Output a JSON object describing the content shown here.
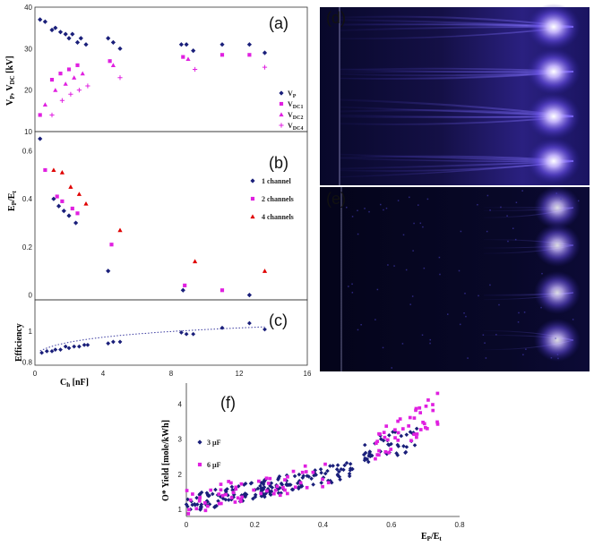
{
  "chart_data": [
    {
      "panel": "(a)",
      "type": "scatter",
      "ylabel": "V_P, V_DC [kV]",
      "xlim": [
        0,
        16
      ],
      "ylim": [
        10,
        40
      ],
      "yticks": [
        "10",
        "20",
        "30",
        "40"
      ],
      "legend_position": "right",
      "series": [
        {
          "name": "V_P",
          "marker": "diamond",
          "color": "#1a1f7a",
          "x": [
            0.3,
            0.6,
            1.0,
            1.2,
            1.5,
            1.8,
            2.0,
            2.2,
            2.5,
            2.7,
            3.0,
            4.3,
            4.6,
            5.0,
            8.6,
            8.9,
            9.3,
            11.0,
            12.6,
            13.5
          ],
          "y": [
            37,
            36.5,
            34.5,
            35,
            34,
            33.5,
            32.5,
            33.5,
            31.5,
            32.5,
            31,
            32.5,
            31.5,
            30,
            31,
            31,
            29.5,
            31,
            31,
            29
          ]
        },
        {
          "name": "V_DC1",
          "marker": "square",
          "color": "#e020e0",
          "x": [
            0.3,
            1.0,
            1.5,
            2.0,
            2.5,
            4.4,
            8.7,
            11.0,
            12.6
          ],
          "y": [
            14,
            22.5,
            24,
            25,
            26,
            27,
            28,
            28.5,
            28.5
          ]
        },
        {
          "name": "V_DC2",
          "marker": "triangle",
          "color": "#e020e0",
          "x": [
            0.6,
            1.2,
            1.8,
            2.3,
            2.8,
            4.6,
            9.0
          ],
          "y": [
            16.5,
            20,
            21.5,
            23,
            24,
            26,
            27.5
          ]
        },
        {
          "name": "V_DC4",
          "marker": "plus",
          "color": "#e020e0",
          "x": [
            1.0,
            1.6,
            2.1,
            2.6,
            3.1,
            5.0,
            9.4,
            13.5
          ],
          "y": [
            14,
            17.5,
            19,
            20,
            21,
            23,
            25,
            25.5
          ]
        }
      ]
    },
    {
      "panel": "(b)",
      "type": "scatter",
      "ylabel": "E_P/E_t",
      "xlim": [
        0,
        16
      ],
      "ylim": [
        -0.02,
        0.68
      ],
      "yticks": [
        "0",
        "0.2",
        "0.4",
        "0.6"
      ],
      "legend_position": "right",
      "series": [
        {
          "name": "1 channel",
          "marker": "diamond",
          "color": "#1a1f7a",
          "x": [
            0.3,
            1.1,
            1.4,
            1.7,
            2.0,
            2.4,
            4.3,
            8.7,
            12.6
          ],
          "y": [
            0.65,
            0.4,
            0.37,
            0.35,
            0.33,
            0.3,
            0.1,
            0.02,
            0.0
          ]
        },
        {
          "name": "2 channels",
          "marker": "square",
          "color": "#e020e0",
          "x": [
            0.6,
            1.3,
            1.6,
            2.2,
            2.5,
            4.5,
            8.8,
            11.0
          ],
          "y": [
            0.52,
            0.41,
            0.39,
            0.36,
            0.34,
            0.21,
            0.04,
            0.02
          ]
        },
        {
          "name": "4 channels",
          "marker": "triangle",
          "color": "#e00000",
          "x": [
            1.1,
            1.6,
            2.1,
            2.6,
            3.0,
            5.0,
            9.4,
            13.5
          ],
          "y": [
            0.52,
            0.51,
            0.45,
            0.42,
            0.38,
            0.27,
            0.14,
            0.1
          ]
        }
      ]
    },
    {
      "panel": "(c)",
      "type": "scatter",
      "ylabel": "Efficiency",
      "xlabel": "C_h [nF]",
      "xlim": [
        0,
        16
      ],
      "ylim": [
        0.78,
        1.2
      ],
      "xticks": [
        "0",
        "4",
        "8",
        "12",
        "16"
      ],
      "yticks": [
        "0.8",
        "1"
      ],
      "trendline": "dotted",
      "series": [
        {
          "name": "",
          "marker": "diamond",
          "color": "#1a1f7a",
          "x": [
            0.4,
            0.7,
            1.0,
            1.2,
            1.5,
            1.8,
            2.0,
            2.3,
            2.6,
            2.9,
            3.1,
            4.3,
            4.6,
            5.0,
            8.6,
            8.9,
            9.3,
            11.0,
            12.6,
            13.5
          ],
          "y": [
            0.86,
            0.87,
            0.87,
            0.88,
            0.88,
            0.9,
            0.89,
            0.9,
            0.9,
            0.91,
            0.91,
            0.92,
            0.93,
            0.93,
            0.99,
            0.98,
            0.98,
            1.02,
            1.05,
            1.01
          ]
        }
      ]
    },
    {
      "panel": "(f)",
      "type": "scatter",
      "ylabel": "O* Yield [mole/kWh]",
      "xlabel": "E_P/E_t",
      "xlim": [
        0,
        0.8
      ],
      "ylim": [
        0.8,
        4.6
      ],
      "xticks": [
        "0",
        "0.2",
        "0.4",
        "0.6",
        "0.8"
      ],
      "yticks": [
        "1",
        "2",
        "3",
        "4"
      ],
      "legend_position": "left",
      "series": [
        {
          "name": "3 µF",
          "marker": "diamond",
          "color": "#1a1f7a",
          "distribution": "dense band rising from ~1.2 at 0 to ~2.2 at 0.5, then jump to 2.5–3.5 between 0.52 and 0.68"
        },
        {
          "name": "6 µF",
          "marker": "square",
          "color": "#e020e0",
          "distribution": "sparser band ~1.3–2.2 up to 0.42, cluster 2.5–4.3 between 0.54 and 0.76"
        }
      ]
    }
  ],
  "labels": {
    "a": "(a)",
    "b": "(b)",
    "c": "(c)",
    "d": "(d)",
    "e": "(e)",
    "f": "(f)"
  },
  "legend_a": [
    "V_P",
    "V_DC1",
    "V_DC2",
    "V_DC4"
  ],
  "legend_b": [
    "1 channel",
    "2 channels",
    "4 channels"
  ],
  "legend_f": [
    "3 µF",
    "6 µF"
  ],
  "images": {
    "d": {
      "description_color": "#2a1f9a",
      "streamer_rows": 4
    },
    "e": {
      "description_color": "#2a1f9a",
      "streamer_rows": 4
    }
  },
  "colors": {
    "navy": "#1a1f7a",
    "magenta": "#e020e0",
    "red": "#e00000",
    "trend": "#3a3aa0"
  }
}
